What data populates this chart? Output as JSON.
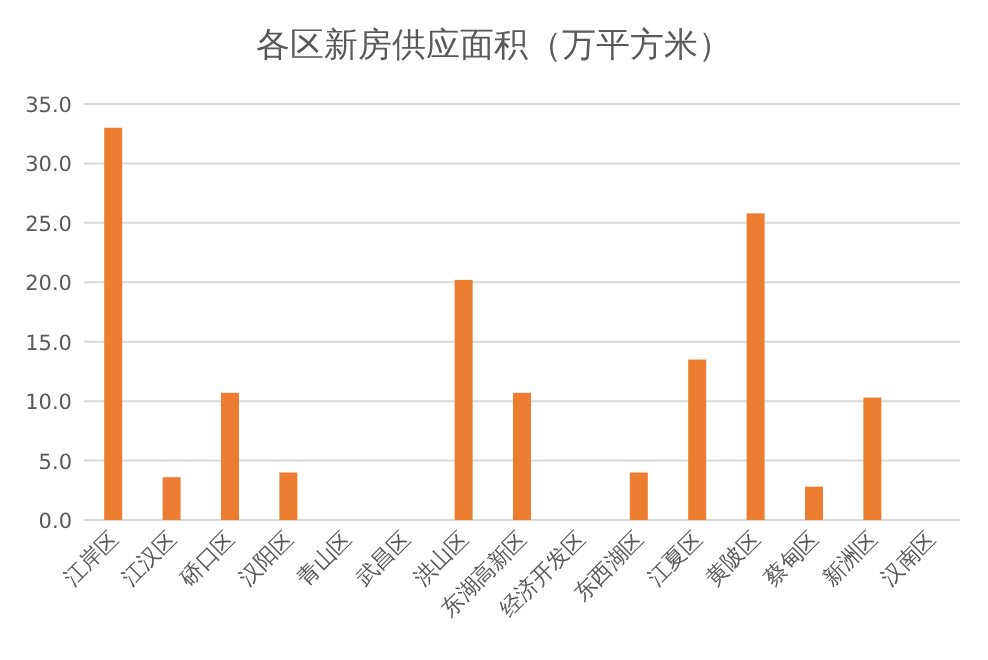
{
  "chart_data": {
    "type": "bar",
    "title": "各区新房供应面积（万平方米）",
    "categories": [
      "江岸区",
      "江汉区",
      "硚口区",
      "汉阳区",
      "青山区",
      "武昌区",
      "洪山区",
      "东湖高新区",
      "经济开发区",
      "东西湖区",
      "江夏区",
      "黄陂区",
      "蔡甸区",
      "新洲区",
      "汉南区"
    ],
    "values": [
      33.0,
      3.6,
      10.7,
      4.0,
      null,
      null,
      20.2,
      10.7,
      null,
      4.0,
      13.5,
      25.8,
      2.8,
      10.3,
      null
    ],
    "color": "#ed7d31",
    "ylim": [
      0,
      35
    ],
    "yticks": [
      {
        "value": 0,
        "label": "0.0"
      },
      {
        "value": 5,
        "label": "5.0"
      },
      {
        "value": 10,
        "label": "10.0"
      },
      {
        "value": 15,
        "label": "15.0"
      },
      {
        "value": 20,
        "label": "20.0"
      },
      {
        "value": 25,
        "label": "25.0"
      },
      {
        "value": 30,
        "label": "30.0"
      },
      {
        "value": 35,
        "label": "35.0"
      }
    ],
    "grid": "y"
  }
}
